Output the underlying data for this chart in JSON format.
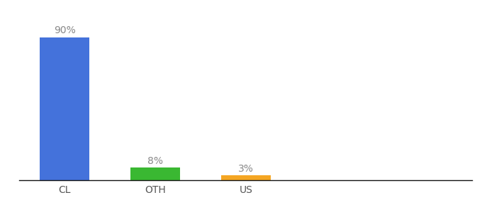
{
  "categories": [
    "CL",
    "OTH",
    "US"
  ],
  "values": [
    90,
    8,
    3
  ],
  "bar_colors": [
    "#4472db",
    "#3ab832",
    "#f5a623"
  ],
  "labels": [
    "90%",
    "8%",
    "3%"
  ],
  "background_color": "#ffffff",
  "ylim": [
    0,
    100
  ],
  "bar_width": 0.55,
  "label_fontsize": 10,
  "tick_fontsize": 10,
  "spine_color": "#111111",
  "label_color": "#888888",
  "tick_color": "#555555"
}
